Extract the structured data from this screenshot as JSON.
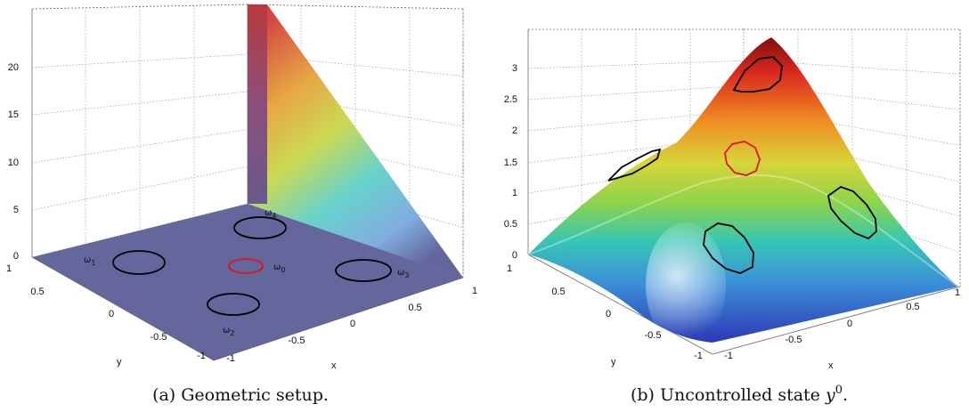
{
  "figure": {
    "panels": [
      {
        "caption": "(a) Geometric setup.",
        "chart_data": {
          "type": "surface",
          "xlabel": "x",
          "ylabel": "y",
          "xlim": [
            -1,
            1
          ],
          "ylim": [
            -1,
            1
          ],
          "zlim": [
            0,
            20
          ],
          "x_ticks": [
            "-1",
            "-0.5",
            "0",
            "0.5",
            "1"
          ],
          "y_ticks": [
            "-1",
            "-0.5",
            "0",
            "0.5",
            "1"
          ],
          "z_ticks": [
            "0",
            "5",
            "10",
            "15",
            "20"
          ],
          "grid": true,
          "colormap": "jet",
          "regions": [
            {
              "symbol": "ω",
              "sub": "0",
              "color": "#e0141b"
            },
            {
              "symbol": "ω",
              "sub": "1",
              "color": "#000000"
            },
            {
              "symbol": "ω",
              "sub": "2",
              "color": "#000000"
            },
            {
              "symbol": "ω",
              "sub": "3",
              "color": "#000000"
            },
            {
              "symbol": "ω",
              "sub": "4",
              "color": "#000000"
            }
          ]
        }
      },
      {
        "caption_text": "(b) Uncontrolled state ",
        "caption_var": "y",
        "caption_sup": "0",
        "caption_end": ".",
        "chart_data": {
          "type": "surface",
          "xlabel": "x",
          "ylabel": "y",
          "xlim": [
            -1,
            1
          ],
          "ylim": [
            -1,
            1
          ],
          "zlim": [
            0,
            3
          ],
          "x_ticks": [
            "-1",
            "-0.5",
            "0",
            "0.5",
            "1"
          ],
          "y_ticks": [
            "-1",
            "-0.5",
            "0",
            "0.5",
            "1"
          ],
          "z_ticks": [
            "0",
            "0.5",
            "1",
            "1.5",
            "2",
            "2.5",
            "3"
          ],
          "grid": true,
          "colormap": "jet",
          "regions_colors": [
            "#e0141b",
            "#000000"
          ]
        }
      }
    ]
  }
}
